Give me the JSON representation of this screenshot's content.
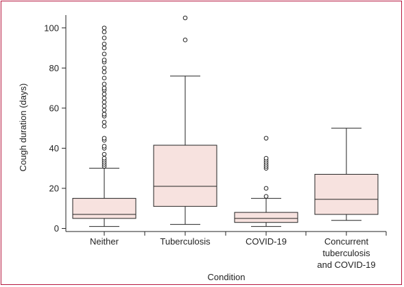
{
  "colors": {
    "frame": "#b5153d",
    "box_fill": "#f7e2df",
    "stroke": "#222222"
  },
  "chart_data": {
    "type": "box",
    "xlabel": "Condition",
    "ylabel": "Cough duration (days)",
    "ylim": [
      0,
      106
    ],
    "yticks": [
      0,
      20,
      40,
      60,
      80,
      100
    ],
    "grid": false,
    "categories": [
      [
        "Neither"
      ],
      [
        "Tuberculosis"
      ],
      [
        "COVID-19"
      ],
      [
        "Concurrent",
        "tuberculosis",
        "and COVID-19"
      ]
    ],
    "boxes": [
      {
        "whisker_low": 1,
        "q1": 5,
        "median": 7,
        "q3": 15,
        "whisker_high": 30,
        "outliers": [
          31,
          32,
          33,
          34,
          35,
          37,
          40,
          41,
          44,
          45,
          51,
          53,
          56,
          57,
          59,
          61,
          63,
          65,
          67,
          69,
          70,
          72,
          75,
          78,
          80,
          83,
          84,
          87,
          90,
          92,
          95,
          98,
          100
        ]
      },
      {
        "whisker_low": 2,
        "q1": 11,
        "median": 21,
        "q3": 41.5,
        "whisker_high": 76,
        "outliers": [
          94,
          105
        ]
      },
      {
        "whisker_low": 1,
        "q1": 3,
        "median": 5,
        "q3": 8,
        "whisker_high": 15,
        "outliers": [
          16,
          20,
          30,
          31,
          32,
          33,
          34,
          35,
          45
        ]
      },
      {
        "whisker_low": 4,
        "q1": 7,
        "median": 14.5,
        "q3": 27,
        "whisker_high": 50,
        "outliers": []
      }
    ]
  }
}
